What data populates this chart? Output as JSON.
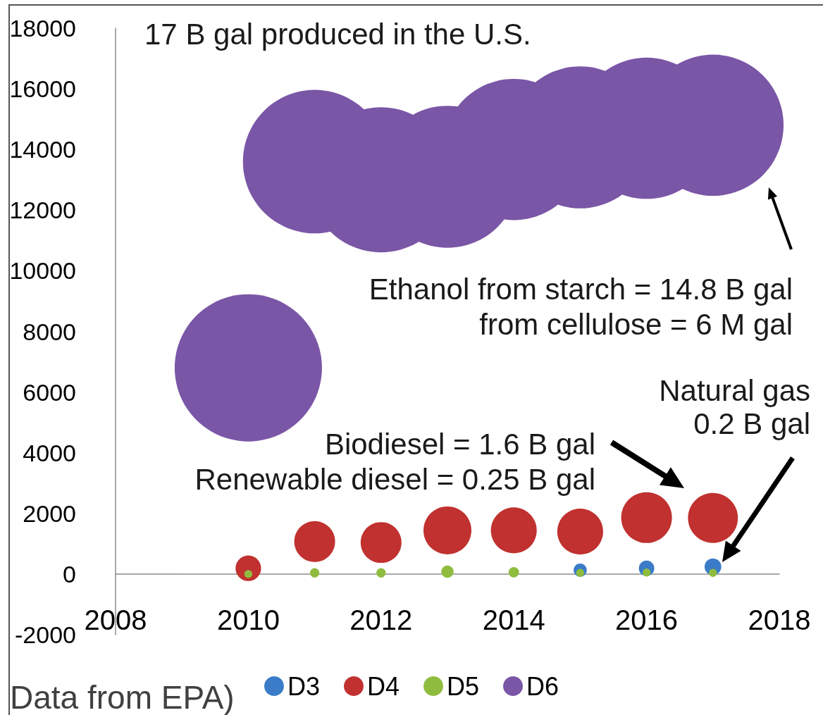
{
  "chart_data": {
    "type": "bubble",
    "title": "17 B gal produced in the U.S.",
    "x": [
      2010,
      2011,
      2012,
      2013,
      2014,
      2015,
      2016,
      2017
    ],
    "series": [
      {
        "name": "D3",
        "color": "#3a7cc8",
        "values": [
          null,
          null,
          null,
          null,
          null,
          130,
          190,
          240
        ],
        "sizes": [
          null,
          null,
          null,
          null,
          null,
          0.008,
          0.011,
          0.013
        ]
      },
      {
        "name": "D4",
        "color": "#c0312f",
        "values": [
          190,
          1070,
          1040,
          1440,
          1440,
          1400,
          1860,
          1850
        ],
        "sizes": [
          0.03,
          0.077,
          0.077,
          0.106,
          0.097,
          0.097,
          0.119,
          0.115
        ]
      },
      {
        "name": "D5",
        "color": "#8fbc3f",
        "values": [
          0,
          40,
          40,
          80,
          60,
          40,
          50,
          40
        ],
        "sizes": [
          0.003,
          0.004,
          0.004,
          0.007,
          0.005,
          0.003,
          0.003,
          0.003
        ]
      },
      {
        "name": "D6",
        "color": "#7a56a6",
        "values": [
          6800,
          13600,
          13000,
          13100,
          14000,
          14400,
          14700,
          14800
        ],
        "sizes": [
          1,
          0.95,
          0.97,
          0.93,
          0.92,
          0.93,
          0.92,
          0.92
        ]
      }
    ],
    "xlim": [
      2008,
      2018
    ],
    "xticks": [
      2008,
      2010,
      2012,
      2014,
      2016,
      2018
    ],
    "ylim": [
      -2000,
      18000
    ],
    "yticks": [
      -2000,
      0,
      2000,
      4000,
      6000,
      8000,
      10000,
      12000,
      14000,
      16000,
      18000
    ],
    "annotations": [
      "Ethanol from starch = 14.8 B gal\nfrom cellulose = 6 M gal",
      "Biodiesel = 1.6 B gal\nRenewable diesel = 0.25 B gal",
      "Natural gas\n0.2 B gal",
      "Data from EPA)"
    ],
    "legend": "bottom",
    "marker": "circle"
  }
}
